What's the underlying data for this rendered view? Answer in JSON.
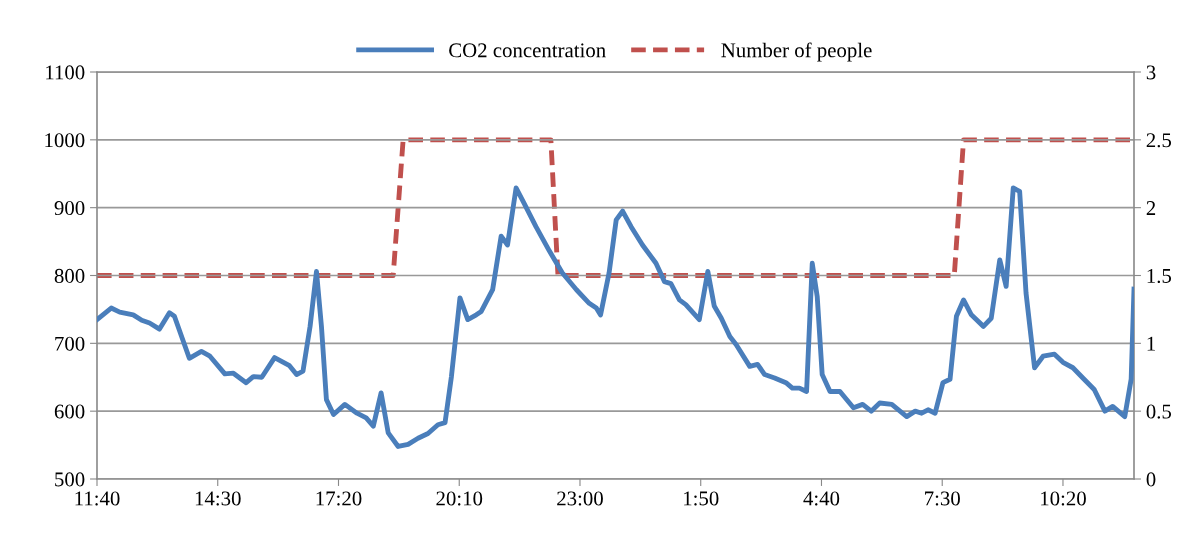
{
  "chart_data": {
    "type": "line",
    "xlim": [
      "2000-01-01T11:40",
      "2000-01-02T12:00"
    ],
    "xticks": [
      {
        "value": "2000-01-01T11:40",
        "label": "11:40"
      },
      {
        "value": "2000-01-01T14:30",
        "label": "14:30"
      },
      {
        "value": "2000-01-01T17:20",
        "label": "17:20"
      },
      {
        "value": "2000-01-01T20:10",
        "label": "20:10"
      },
      {
        "value": "2000-01-01T23:00",
        "label": "23:00"
      },
      {
        "value": "2000-01-02T01:50",
        "label": "1:50"
      },
      {
        "value": "2000-01-02T04:40",
        "label": "4:40"
      },
      {
        "value": "2000-01-02T07:30",
        "label": "7:30"
      },
      {
        "value": "2000-01-02T10:20",
        "label": "10:20"
      }
    ],
    "ylim": [
      500,
      1100
    ],
    "yticks": [
      500,
      600,
      700,
      800,
      900,
      1000,
      1100
    ],
    "y2lim": [
      0,
      3
    ],
    "y2ticks": [
      0,
      0.5,
      1,
      1.5,
      2,
      2.5,
      3
    ],
    "grid": "y",
    "legend": "top",
    "marker": "none",
    "series": [
      {
        "name": "CO2 concentration",
        "color": "#4a7ebb",
        "line_style": "solid",
        "x": [
          "2000-01-01T11:40",
          "2000-01-01T12:00",
          "2000-01-01T12:12",
          "2000-01-01T12:31",
          "2000-01-01T12:43",
          "2000-01-01T12:54",
          "2000-01-01T13:08",
          "2000-01-01T13:22",
          "2000-01-01T13:29",
          "2000-01-01T13:50",
          "2000-01-01T14:07",
          "2000-01-01T14:19",
          "2000-01-01T14:40",
          "2000-01-01T14:52",
          "2000-01-01T15:10",
          "2000-01-01T15:20",
          "2000-01-01T15:32",
          "2000-01-01T15:50",
          "2000-01-01T16:11",
          "2000-01-01T16:21",
          "2000-01-01T16:30",
          "2000-01-01T16:40",
          "2000-01-01T16:49",
          "2000-01-01T16:56",
          "2000-01-01T17:03",
          "2000-01-01T17:13",
          "2000-01-01T17:29",
          "2000-01-01T17:46",
          "2000-01-01T17:59",
          "2000-01-01T18:09",
          "2000-01-01T18:20",
          "2000-01-01T18:30",
          "2000-01-01T18:44",
          "2000-01-01T18:58",
          "2000-01-01T19:12",
          "2000-01-01T19:26",
          "2000-01-01T19:40",
          "2000-01-01T19:50",
          "2000-01-01T19:59",
          "2000-01-01T20:11",
          "2000-01-01T20:22",
          "2000-01-01T20:34",
          "2000-01-01T20:41",
          "2000-01-01T20:57",
          "2000-01-01T21:09",
          "2000-01-01T21:18",
          "2000-01-01T21:30",
          "2000-01-01T21:41",
          "2000-01-01T21:58",
          "2000-01-01T22:17",
          "2000-01-01T22:35",
          "2000-01-01T22:55",
          "2000-01-01T23:13",
          "2000-01-01T23:23",
          "2000-01-01T23:29",
          "2000-01-01T23:41",
          "2000-01-01T23:51",
          "2000-01-02T00:00",
          "2000-01-02T00:12",
          "2000-01-02T00:28",
          "2000-01-02T00:47",
          "2000-01-02T00:59",
          "2000-01-02T01:08",
          "2000-01-02T01:20",
          "2000-01-02T01:29",
          "2000-01-02T01:48",
          "2000-01-02T02:00",
          "2000-01-02T02:09",
          "2000-01-02T02:19",
          "2000-01-02T02:31",
          "2000-01-02T02:40",
          "2000-01-02T02:59",
          "2000-01-02T03:10",
          "2000-01-02T03:20",
          "2000-01-02T03:34",
          "2000-01-02T03:50",
          "2000-01-02T03:59",
          "2000-01-02T04:09",
          "2000-01-02T04:19",
          "2000-01-02T04:27",
          "2000-01-02T04:34",
          "2000-01-02T04:41",
          "2000-01-02T04:52",
          "2000-01-02T05:06",
          "2000-01-02T05:25",
          "2000-01-02T05:38",
          "2000-01-02T05:50",
          "2000-01-02T06:02",
          "2000-01-02T06:19",
          "2000-01-02T06:40",
          "2000-01-02T06:52",
          "2000-01-02T07:01",
          "2000-01-02T07:10",
          "2000-01-02T07:20",
          "2000-01-02T07:31",
          "2000-01-02T07:41",
          "2000-01-02T07:50",
          "2000-01-02T08:00",
          "2000-01-02T08:11",
          "2000-01-02T08:28",
          "2000-01-02T08:39",
          "2000-01-02T08:51",
          "2000-01-02T09:00",
          "2000-01-02T09:10",
          "2000-01-02T09:19",
          "2000-01-02T09:28",
          "2000-01-02T09:40",
          "2000-01-02T09:52",
          "2000-01-02T10:08",
          "2000-01-02T10:20",
          "2000-01-02T10:34",
          "2000-01-02T10:48",
          "2000-01-02T11:04",
          "2000-01-02T11:19",
          "2000-01-02T11:30",
          "2000-01-02T11:47",
          "2000-01-02T11:56",
          "2000-01-02T12:00"
        ],
        "values": [
          735,
          752,
          746,
          742,
          734,
          730,
          721,
          745,
          740,
          678,
          688,
          681,
          655,
          656,
          642,
          651,
          650,
          679,
          667,
          654,
          659,
          725,
          806,
          725,
          617,
          595,
          610,
          597,
          590,
          578,
          627,
          568,
          548,
          551,
          560,
          567,
          580,
          583,
          651,
          767,
          735,
          742,
          747,
          779,
          858,
          845,
          929,
          907,
          872,
          836,
          804,
          779,
          759,
          752,
          742,
          804,
          882,
          895,
          872,
          845,
          818,
          791,
          788,
          764,
          757,
          735,
          806,
          755,
          737,
          710,
          698,
          666,
          669,
          654,
          649,
          642,
          634,
          634,
          629,
          818,
          769,
          654,
          629,
          629,
          605,
          610,
          600,
          612,
          610,
          592,
          600,
          597,
          602,
          597,
          642,
          647,
          740,
          764,
          742,
          725,
          737,
          823,
          784,
          929,
          924,
          774,
          664,
          681,
          684,
          672,
          664,
          649,
          632,
          600,
          607,
          592,
          647,
          780
        ]
      },
      {
        "name": "Number of people",
        "color": "#c0504d",
        "line_style": "dashed",
        "axis": "y2",
        "x": [
          "2000-01-01T11:40",
          "2000-01-01T18:37",
          "2000-01-01T18:51",
          "2000-01-01T22:19",
          "2000-01-01T22:29",
          "2000-01-02T07:47",
          "2000-01-02T08:00",
          "2000-01-02T12:00"
        ],
        "values": [
          1.5,
          1.5,
          2.5,
          2.5,
          1.5,
          1.5,
          2.5,
          2.5
        ]
      }
    ]
  }
}
